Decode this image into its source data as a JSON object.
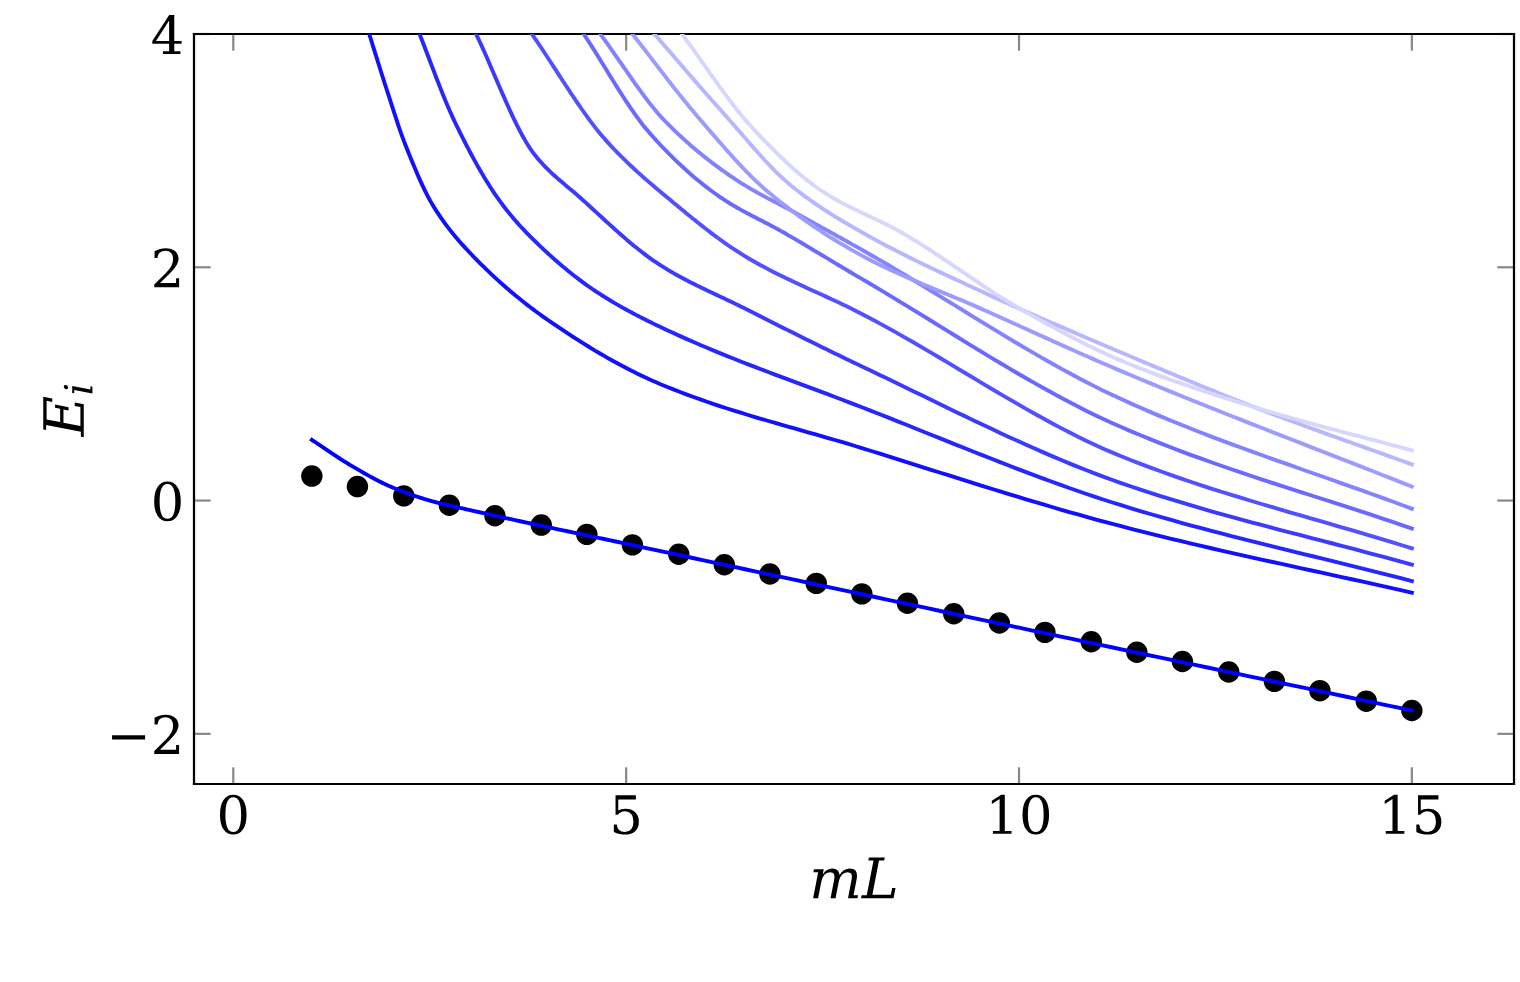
{
  "chart_data": {
    "type": "line",
    "xlabel": "mL",
    "ylabel": "E$_{i}$",
    "xlim": [
      -0.5,
      16.3
    ],
    "ylim": [
      -2.43,
      4
    ],
    "xticks": [
      0,
      5,
      10,
      15
    ],
    "yticks": [
      {
        "value": -2,
        "label": "−2"
      },
      0,
      2,
      4
    ],
    "grid": false,
    "legend": false,
    "marker": "none",
    "line_style": "solid",
    "series": [
      {
        "color": "#0000ff",
        "x": [
          1,
          1.5,
          2,
          2.5,
          3,
          5,
          10,
          15
        ],
        "values": [
          0.52,
          0.3,
          0.12,
          0.0,
          -0.08,
          -0.37,
          -1.09,
          -1.8
        ]
      },
      {
        "color": "#1111ff",
        "x": [
          1.73,
          1.94,
          2.19,
          2.55,
          3.06,
          4.0,
          5.43,
          8,
          11.3,
          15
        ],
        "values": [
          4,
          3.55,
          3.05,
          2.52,
          2.09,
          1.55,
          1.0,
          0.45,
          -0.22,
          -0.79
        ]
      },
      {
        "color": "#2626ff",
        "x": [
          2.37,
          2.81,
          3.39,
          3.83,
          4.6,
          5.43,
          8,
          11.3,
          15
        ],
        "values": [
          4,
          3.26,
          2.57,
          2.23,
          1.8,
          1.49,
          0.8,
          -0.04,
          -0.69
        ]
      },
      {
        "color": "#3b3bff",
        "x": [
          3.09,
          3.83,
          4.41,
          5.43,
          6.5,
          8,
          11.3,
          15
        ],
        "values": [
          4,
          2.97,
          2.6,
          2.02,
          1.65,
          1.15,
          0.15,
          -0.55
        ]
      },
      {
        "color": "#5151ff",
        "x": [
          3.8,
          4.74,
          5.61,
          6.5,
          8,
          11.3,
          15
        ],
        "values": [
          4,
          3.09,
          2.55,
          2.1,
          1.6,
          0.38,
          -0.41
        ]
      },
      {
        "color": "#6a6aff",
        "x": [
          4.46,
          5.3,
          6.2,
          7,
          8,
          11.3,
          15
        ],
        "values": [
          4,
          3.15,
          2.6,
          2.3,
          1.9,
          0.63,
          -0.24
        ]
      },
      {
        "color": "#8383ff",
        "x": [
          4.67,
          5.5,
          6.4,
          7.2,
          8,
          11.3,
          15
        ],
        "values": [
          4,
          3.25,
          2.75,
          2.45,
          2.15,
          0.87,
          -0.07
        ]
      },
      {
        "color": "#9c9cff",
        "x": [
          5.08,
          5.9,
          6.8,
          8,
          9.5,
          11.3,
          15
        ],
        "values": [
          4,
          3.3,
          2.65,
          2.1,
          1.65,
          1.11,
          0.12
        ]
      },
      {
        "color": "#b7b7ff",
        "x": [
          5.36,
          6.2,
          7.1,
          8,
          9.5,
          11.3,
          13,
          15
        ],
        "values": [
          4,
          3.35,
          2.7,
          2.3,
          1.8,
          1.27,
          0.8,
          0.31
        ]
      },
      {
        "color": "#d6d6ff",
        "x": [
          5.71,
          6.6,
          7.5,
          8.5,
          10,
          11.3,
          13,
          15
        ],
        "values": [
          4,
          3.2,
          2.65,
          2.3,
          1.65,
          1.2,
          0.8,
          0.43
        ]
      },
      {
        "type": "scatter",
        "color": "#000000",
        "marker": "circle",
        "x": [
          1,
          1.58,
          2.17,
          2.75,
          3.33,
          3.92,
          4.5,
          5.08,
          5.67,
          6.25,
          6.83,
          7.42,
          8,
          8.58,
          9.17,
          9.75,
          10.33,
          10.92,
          11.5,
          12.08,
          12.67,
          13.25,
          13.83,
          14.42,
          15
        ],
        "values": [
          0.21,
          0.12,
          0.04,
          -0.04,
          -0.13,
          -0.21,
          -0.29,
          -0.38,
          -0.46,
          -0.55,
          -0.63,
          -0.71,
          -0.8,
          -0.88,
          -0.97,
          -1.05,
          -1.13,
          -1.21,
          -1.3,
          -1.38,
          -1.47,
          -1.55,
          -1.63,
          -1.72,
          -1.8
        ]
      }
    ]
  }
}
